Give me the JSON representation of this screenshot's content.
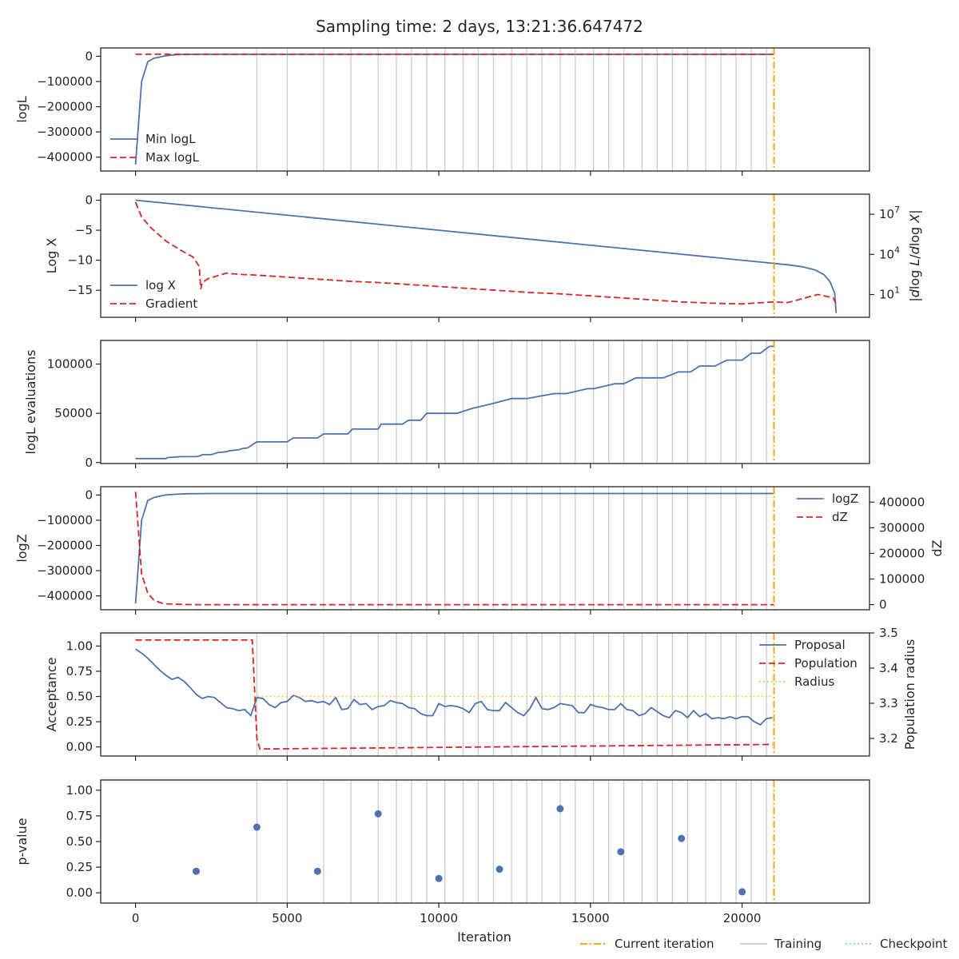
{
  "title": "Sampling time: 2 days, 13:21:36.647472",
  "x_axis": {
    "label": "Iteration",
    "range": [
      -1150,
      24200
    ],
    "ticks": [
      0,
      5000,
      10000,
      15000,
      20000
    ]
  },
  "bottom_legend": [
    {
      "name": "Current iteration",
      "color": "#ff9900",
      "style": "dashdot"
    },
    {
      "name": "Training",
      "color": "#cccccc",
      "style": "solid"
    },
    {
      "name": "Checkpoint",
      "color": "#7ecbe0",
      "style": "dotted"
    }
  ],
  "colors": {
    "blue": "#4c72b0",
    "red": "#d62728",
    "orange": "#ff9900",
    "training": "#cccccc",
    "radius": "#f5c842"
  },
  "current_iteration": 21050,
  "training_iterations": [
    4000,
    5000,
    6200,
    7100,
    8000,
    8600,
    9100,
    9600,
    10200,
    10800,
    11300,
    11800,
    12400,
    12900,
    13400,
    14000,
    14500,
    15100,
    15600,
    16100,
    16700,
    17200,
    17700,
    18200,
    18800,
    19300,
    19800,
    20300,
    20800
  ],
  "chart_data": [
    {
      "type": "line",
      "ylabel": "logL",
      "ylim": [
        -455000,
        33000
      ],
      "yticks": [
        0,
        -100000,
        -200000,
        -300000,
        -400000
      ],
      "yticklabels": [
        "0",
        "−100000",
        "−200000",
        "−300000",
        "−400000"
      ],
      "legend_position": "lower-left",
      "series": [
        {
          "name": "Min logL",
          "style": "solid",
          "color": "#4c72b0",
          "x": [
            0,
            200,
            400,
            600,
            800,
            1000,
            1200,
            1500,
            2000,
            4000,
            21050
          ],
          "y": [
            -430000,
            -100000,
            -22000,
            -8000,
            -3000,
            2000,
            5000,
            7000,
            8000,
            8000,
            8000
          ]
        },
        {
          "name": "Max logL",
          "style": "dashed",
          "color": "#d62728",
          "x": [
            0,
            21050
          ],
          "y": [
            8000,
            8000
          ]
        }
      ]
    },
    {
      "type": "line",
      "ylabel": "Log X",
      "ylim": [
        -19.5,
        1
      ],
      "yticks": [
        0,
        -5,
        -10,
        -15
      ],
      "yticklabels": [
        "0",
        "−5",
        "−10",
        "−15"
      ],
      "y2label": "|dlog L/dlog X|",
      "y2_scale": "log",
      "y2lim_log10": [
        -0.7,
        8.5
      ],
      "y2ticks_log10": [
        1,
        4,
        7
      ],
      "y2ticklabels": [
        "10",
        "10",
        "10"
      ],
      "y2tick_exponents": [
        "1",
        "4",
        "7"
      ],
      "legend_position": "lower-left",
      "series": [
        {
          "name": "log X",
          "style": "solid",
          "color": "#4c72b0",
          "x": [
            0,
            21000,
            21500,
            22000,
            22400,
            22700,
            22900,
            23050,
            23100
          ],
          "y": [
            0,
            -10.5,
            -10.75,
            -11.1,
            -11.6,
            -12.4,
            -13.6,
            -15.5,
            -18.8
          ]
        },
        {
          "name": "Gradient",
          "style": "dashed",
          "color": "#d62728",
          "axis": "right",
          "x": [
            0,
            200,
            500,
            1000,
            1500,
            1900,
            2100,
            2150,
            2200,
            2400,
            2700,
            3000,
            3200,
            3500,
            4000,
            5000,
            6000,
            7000,
            8000,
            9000,
            10000,
            11000,
            12000,
            13000,
            14000,
            15000,
            16000,
            17000,
            18000,
            19000,
            20000,
            21000,
            21500,
            22000,
            22500,
            23000,
            23100
          ],
          "y": [
            7.9,
            6.8,
            6.0,
            5.0,
            4.3,
            3.8,
            3.1,
            1.4,
            1.9,
            2.2,
            2.4,
            2.6,
            2.55,
            2.5,
            2.45,
            2.3,
            2.15,
            2.0,
            1.9,
            1.75,
            1.6,
            1.45,
            1.3,
            1.15,
            1.05,
            0.9,
            0.75,
            0.6,
            0.45,
            0.35,
            0.3,
            0.45,
            0.4,
            0.7,
            1.0,
            0.75,
            0.3
          ]
        }
      ]
    },
    {
      "type": "line",
      "ylabel": "logL evaluations",
      "ylim": [
        -1000,
        124000
      ],
      "yticks": [
        0,
        50000,
        100000
      ],
      "yticklabels": [
        "0",
        "50000",
        "100000"
      ],
      "series": [
        {
          "name": "",
          "style": "solid",
          "color": "#4c72b0",
          "x": [
            0,
            1000,
            1050,
            1500,
            2000,
            2150,
            2200,
            2500,
            2600,
            2700,
            3000,
            3100,
            3400,
            3500,
            3700,
            3800,
            4000,
            5000,
            5200,
            6000,
            6200,
            7000,
            7150,
            8000,
            8100,
            8800,
            9000,
            9400,
            9600,
            10600,
            11100,
            11800,
            12400,
            12900,
            13800,
            14200,
            14900,
            15100,
            15800,
            16100,
            16500,
            17400,
            17900,
            18300,
            18600,
            19100,
            19500,
            20000,
            20300,
            20600,
            20900,
            21050
          ],
          "y": [
            4000,
            4000,
            5000,
            6000,
            6000,
            7000,
            8000,
            8000,
            9000,
            10000,
            11000,
            12000,
            13000,
            14000,
            15000,
            17000,
            21000,
            21000,
            25000,
            25000,
            29000,
            29000,
            34000,
            34000,
            39000,
            39000,
            43000,
            43000,
            50000,
            50000,
            55000,
            60000,
            65000,
            65000,
            70000,
            70000,
            75000,
            75000,
            80000,
            80000,
            86000,
            86000,
            92000,
            92000,
            98000,
            98000,
            104000,
            104000,
            111000,
            111000,
            118000,
            118000
          ]
        }
      ]
    },
    {
      "type": "line",
      "ylabel": "logZ",
      "ylim": [
        -455000,
        33000
      ],
      "yticks": [
        0,
        -100000,
        -200000,
        -300000,
        -400000
      ],
      "yticklabels": [
        "0",
        "−100000",
        "−200000",
        "−300000",
        "−400000"
      ],
      "y2label": "dZ",
      "y2lim": [
        -20000,
        460000
      ],
      "y2ticks": [
        0,
        100000,
        200000,
        300000,
        400000
      ],
      "y2ticklabels": [
        "0",
        "100000",
        "200000",
        "300000",
        "400000"
      ],
      "legend_position": "upper-right",
      "series": [
        {
          "name": "logZ",
          "style": "solid",
          "color": "#4c72b0",
          "x": [
            0,
            200,
            400,
            600,
            800,
            1000,
            1300,
            1700,
            2500,
            21050
          ],
          "y": [
            -430000,
            -100000,
            -22000,
            -10000,
            -4000,
            0,
            3000,
            5000,
            6000,
            6000
          ]
        },
        {
          "name": "dZ",
          "style": "dashed",
          "color": "#d62728",
          "axis": "right",
          "x": [
            0,
            200,
            400,
            600,
            800,
            1000,
            1500,
            2000,
            21050
          ],
          "y": [
            440000,
            120000,
            45000,
            18000,
            8000,
            3000,
            1000,
            0,
            0
          ]
        }
      ]
    },
    {
      "type": "line",
      "ylabel": "Acceptance",
      "ylim": [
        -0.09,
        1.13
      ],
      "yticks": [
        0,
        0.25,
        0.5,
        0.75,
        1
      ],
      "yticklabels": [
        "0.00",
        "0.25",
        "0.50",
        "0.75",
        "1.00"
      ],
      "y2label": "Population radius",
      "y2lim": [
        3.15,
        3.5
      ],
      "y2ticks": [
        3.2,
        3.3,
        3.4,
        3.5
      ],
      "y2ticklabels": [
        "3.2",
        "3.3",
        "3.4",
        "3.5"
      ],
      "legend_position": "upper-right",
      "series": [
        {
          "name": "Proposal",
          "style": "solid",
          "color": "#4c72b0",
          "x": [
            0,
            200,
            400,
            600,
            800,
            1000,
            1200,
            1400,
            1600,
            1800,
            2000,
            2200,
            2400,
            2600,
            2800,
            3000,
            3200,
            3400,
            3600,
            3800,
            4000,
            4200,
            4400,
            4600,
            4800,
            5000,
            5200,
            5400,
            5600,
            5800,
            6000,
            6200,
            6400,
            6600,
            6800,
            7000,
            7200,
            7400,
            7600,
            7800,
            8000,
            8200,
            8400,
            8600,
            8800,
            9000,
            9200,
            9400,
            9600,
            9800,
            10000,
            10200,
            10400,
            10600,
            10800,
            11000,
            11200,
            11400,
            11600,
            11800,
            12000,
            12200,
            12400,
            12600,
            12800,
            13000,
            13200,
            13400,
            13600,
            13800,
            14000,
            14200,
            14400,
            14600,
            14800,
            15000,
            15200,
            15400,
            15600,
            15800,
            16000,
            16200,
            16400,
            16600,
            16800,
            17000,
            17200,
            17400,
            17600,
            17800,
            18000,
            18200,
            18400,
            18600,
            18800,
            19000,
            19200,
            19400,
            19600,
            19800,
            20000,
            20200,
            20400,
            20600,
            20800,
            21000
          ],
          "y": [
            0.97,
            0.93,
            0.88,
            0.82,
            0.76,
            0.71,
            0.67,
            0.69,
            0.65,
            0.59,
            0.52,
            0.48,
            0.5,
            0.49,
            0.44,
            0.39,
            0.38,
            0.36,
            0.37,
            0.31,
            0.49,
            0.48,
            0.42,
            0.39,
            0.44,
            0.45,
            0.51,
            0.49,
            0.45,
            0.46,
            0.44,
            0.45,
            0.42,
            0.49,
            0.37,
            0.38,
            0.47,
            0.42,
            0.43,
            0.37,
            0.4,
            0.41,
            0.46,
            0.44,
            0.43,
            0.39,
            0.38,
            0.33,
            0.31,
            0.31,
            0.43,
            0.4,
            0.41,
            0.4,
            0.38,
            0.34,
            0.43,
            0.45,
            0.37,
            0.36,
            0.36,
            0.44,
            0.39,
            0.34,
            0.31,
            0.38,
            0.49,
            0.38,
            0.37,
            0.39,
            0.43,
            0.42,
            0.41,
            0.34,
            0.34,
            0.42,
            0.4,
            0.39,
            0.37,
            0.37,
            0.43,
            0.37,
            0.36,
            0.31,
            0.33,
            0.39,
            0.35,
            0.31,
            0.29,
            0.36,
            0.34,
            0.29,
            0.36,
            0.3,
            0.33,
            0.28,
            0.29,
            0.28,
            0.3,
            0.28,
            0.3,
            0.3,
            0.25,
            0.22,
            0.28,
            0.29
          ]
        },
        {
          "name": "Population",
          "style": "dashed",
          "color": "#d62728",
          "axis": "right",
          "x": [
            0,
            3850,
            4000,
            4100,
            21000
          ],
          "y": [
            3.48,
            3.48,
            3.2,
            3.17,
            3.183
          ]
        },
        {
          "name": "Radius",
          "style": "dotted",
          "color": "#f5c842",
          "x": [
            3900,
            21000
          ],
          "y": [
            0.5,
            0.5
          ]
        }
      ]
    },
    {
      "type": "scatter",
      "ylabel": "p-value",
      "ylim": [
        -0.1,
        1.1
      ],
      "yticks": [
        0,
        0.25,
        0.5,
        0.75,
        1
      ],
      "yticklabels": [
        "0.00",
        "0.25",
        "0.50",
        "0.75",
        "1.00"
      ],
      "series": [
        {
          "name": "",
          "color": "#4c72b0",
          "x": [
            2000,
            4000,
            6000,
            8000,
            10000,
            12000,
            14000,
            16000,
            18000,
            20000
          ],
          "y": [
            0.21,
            0.64,
            0.21,
            0.77,
            0.14,
            0.23,
            0.82,
            0.4,
            0.53,
            0.01
          ]
        }
      ]
    }
  ]
}
